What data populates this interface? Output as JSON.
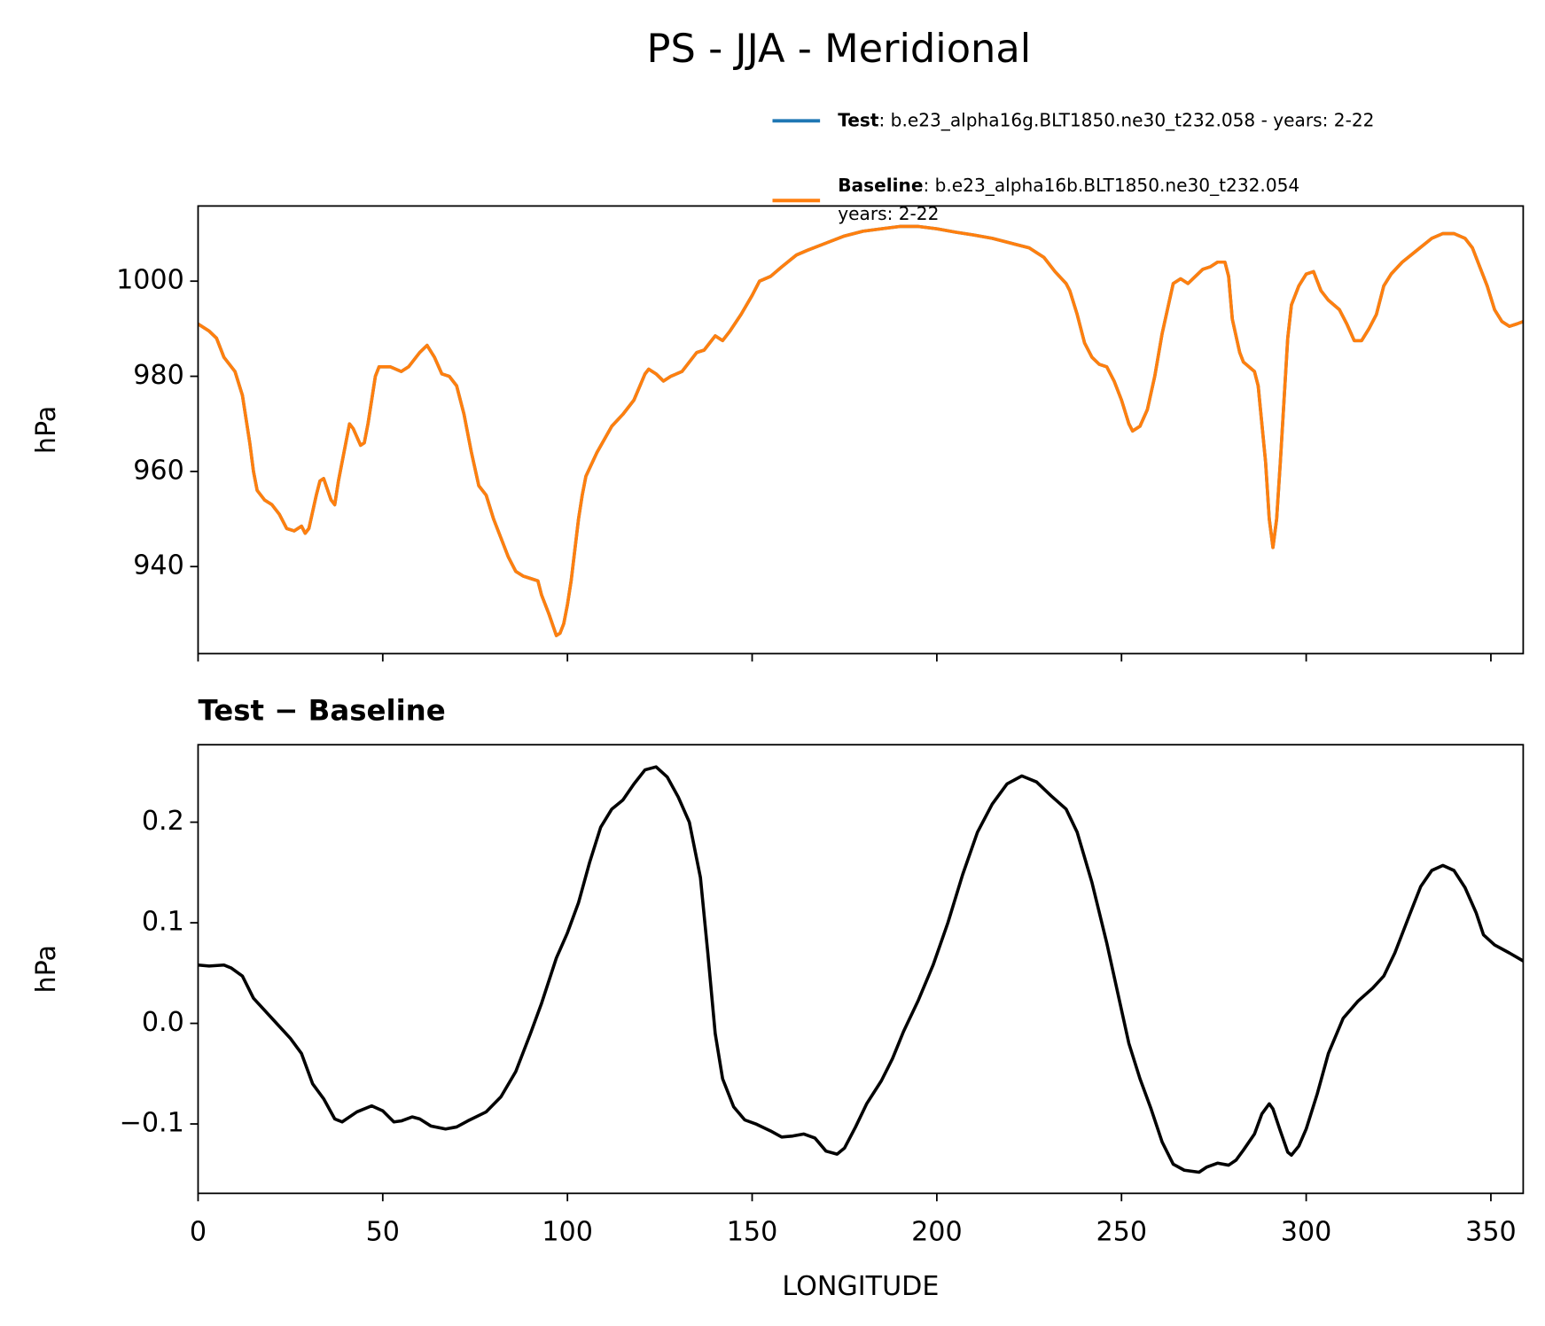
{
  "title": "PS - JJA - Meridional",
  "chart_data": [
    {
      "type": "line",
      "ylabel": "hPa",
      "x": [
        0,
        3,
        5,
        7,
        10,
        12,
        14,
        15,
        16,
        18,
        20,
        22,
        24,
        26,
        28,
        29,
        30,
        32,
        33,
        34,
        36,
        37,
        38,
        40,
        41,
        42,
        44,
        45,
        46,
        48,
        49,
        52,
        55,
        57,
        60,
        62,
        64,
        66,
        68,
        70,
        72,
        74,
        76,
        78,
        80,
        82,
        84,
        86,
        88,
        90,
        92,
        93,
        95,
        97,
        98,
        99,
        100,
        101,
        103,
        104,
        105,
        108,
        112,
        115,
        118,
        121,
        122,
        124,
        126,
        128,
        131,
        133,
        135,
        137,
        140,
        142,
        144,
        147,
        150,
        152,
        155,
        158,
        162,
        165,
        170,
        175,
        180,
        185,
        190,
        195,
        200,
        205,
        210,
        215,
        220,
        225,
        229,
        232,
        235,
        236,
        238,
        240,
        242,
        244,
        246,
        248,
        250,
        252,
        253,
        255,
        257,
        259,
        261,
        263,
        264,
        266,
        268,
        270,
        272,
        274,
        276,
        278,
        279,
        280,
        282,
        283,
        286,
        287,
        288,
        289,
        290,
        291,
        292,
        293,
        294,
        295,
        296,
        298,
        300,
        302,
        304,
        306,
        309,
        311,
        313,
        315,
        317,
        319,
        321,
        323,
        326,
        330,
        334,
        337,
        340,
        343,
        345,
        347,
        349,
        351,
        353,
        355,
        357,
        358.75
      ],
      "series": [
        {
          "name": "Test",
          "legend_lines": [
            ": b.e23_alpha16g.BLT1850.ne30_t232.058 - years: 2-22"
          ],
          "color": "#1f77b4",
          "values": [
            991,
            989.5,
            988,
            984,
            981,
            976,
            966,
            960,
            956,
            954,
            953,
            951,
            948,
            947.5,
            948.5,
            947,
            948,
            955,
            958,
            958.5,
            954,
            953,
            958,
            966,
            970,
            969,
            965.5,
            966,
            970,
            980,
            982,
            982,
            981,
            982,
            985,
            986.5,
            984,
            980.5,
            980,
            978,
            972,
            964,
            957,
            955,
            950,
            946,
            942,
            939,
            938,
            937.5,
            937,
            934,
            930,
            925.5,
            926,
            928,
            932,
            937,
            950,
            955,
            959,
            964,
            969.5,
            972,
            975,
            980.5,
            981.5,
            980.5,
            979,
            980,
            981,
            983,
            985,
            985.5,
            988.5,
            987.5,
            989.5,
            993,
            997,
            1000,
            1001,
            1003,
            1005.5,
            1006.5,
            1008,
            1009.5,
            1010.5,
            1011,
            1011.5,
            1011.5,
            1011,
            1010.3,
            1009.7,
            1009,
            1008,
            1007,
            1005,
            1002,
            999.5,
            998,
            993,
            987,
            984,
            982.5,
            982,
            979,
            975,
            970,
            968.5,
            969.5,
            973,
            980,
            989,
            996,
            999.5,
            1000.5,
            999.5,
            1001,
            1002.5,
            1003,
            1004,
            1004,
            1001,
            992,
            985,
            983,
            981,
            978,
            970,
            962,
            950,
            944,
            950,
            962,
            975,
            988,
            995,
            999,
            1001.5,
            1002,
            998,
            996,
            994,
            991,
            987.5,
            987.5,
            990,
            993,
            999,
            1001.5,
            1004,
            1006.5,
            1009,
            1010,
            1010,
            1009,
            1007,
            1003,
            999,
            994,
            991.5,
            990.5,
            991,
            991.5
          ]
        },
        {
          "name": "Baseline",
          "legend_lines": [
            ": b.e23_alpha16b.BLT1850.ne30_t232.054",
            "years: 2-22"
          ],
          "color": "#ff7f0e",
          "values": [
            991,
            989.5,
            988,
            984,
            981,
            976,
            966,
            960,
            956,
            954,
            953,
            951,
            948,
            947.5,
            948.5,
            947,
            948,
            955,
            958,
            958.5,
            954,
            953,
            958,
            966,
            970,
            969,
            965.5,
            966,
            970,
            980,
            982,
            982,
            981,
            982,
            985,
            986.5,
            984,
            980.5,
            980,
            978,
            972,
            964,
            957,
            955,
            950,
            946,
            942,
            939,
            938,
            937.5,
            937,
            934,
            930,
            925.5,
            926,
            928,
            932,
            937,
            950,
            955,
            959,
            964,
            969.5,
            972,
            975,
            980.5,
            981.5,
            980.5,
            979,
            980,
            981,
            983,
            985,
            985.5,
            988.5,
            987.5,
            989.5,
            993,
            997,
            1000,
            1001,
            1003,
            1005.5,
            1006.5,
            1008,
            1009.5,
            1010.5,
            1011,
            1011.5,
            1011.5,
            1011,
            1010.3,
            1009.7,
            1009,
            1008,
            1007,
            1005,
            1002,
            999.5,
            998,
            993,
            987,
            984,
            982.5,
            982,
            979,
            975,
            970,
            968.5,
            969.5,
            973,
            980,
            989,
            996,
            999.5,
            1000.5,
            999.5,
            1001,
            1002.5,
            1003,
            1004,
            1004,
            1001,
            992,
            985,
            983,
            981,
            978,
            970,
            962,
            950,
            944,
            950,
            962,
            975,
            988,
            995,
            999,
            1001.5,
            1002,
            998,
            996,
            994,
            991,
            987.5,
            987.5,
            990,
            993,
            999,
            1001.5,
            1004,
            1006.5,
            1009,
            1010,
            1010,
            1009,
            1007,
            1003,
            999,
            994,
            991.5,
            990.5,
            991,
            991.5
          ]
        }
      ],
      "xlim": [
        0,
        358.75
      ],
      "xticks": [
        0,
        50,
        100,
        150,
        200,
        250,
        300,
        350
      ],
      "ylim": [
        921.7,
        1015.8
      ],
      "yticks": [
        940,
        960,
        980,
        1000
      ]
    },
    {
      "type": "line",
      "title": "Test − Baseline",
      "ylabel": "hPa",
      "xlabel": "LONGITUDE",
      "x": [
        0,
        3,
        7,
        9,
        12,
        15,
        20,
        25,
        28,
        31,
        34,
        37,
        39,
        43,
        47,
        50,
        53,
        55,
        58,
        60,
        63,
        67,
        70,
        73,
        78,
        82,
        86,
        90,
        93,
        97,
        100,
        103,
        106,
        109,
        112,
        115,
        118,
        121,
        124,
        127,
        130,
        133,
        136,
        138,
        140,
        142,
        145,
        148,
        151,
        155,
        158,
        161,
        164,
        167,
        170,
        173,
        175,
        178,
        181,
        185,
        188,
        191,
        195,
        199,
        203,
        207,
        211,
        215,
        219,
        223,
        227,
        231,
        235,
        238,
        242,
        246,
        249,
        252,
        255,
        258,
        261,
        264,
        267,
        271,
        273,
        276,
        279,
        281,
        283,
        286,
        288,
        290,
        291,
        293,
        295,
        296,
        298,
        300,
        303,
        306,
        310,
        314,
        318,
        321,
        324,
        328,
        331,
        334,
        337,
        340,
        343,
        346,
        348,
        351,
        355,
        358.75
      ],
      "series": [
        {
          "color": "#000000",
          "values": [
            0.058,
            0.057,
            0.058,
            0.055,
            0.047,
            0.025,
            0.005,
            -0.015,
            -0.03,
            -0.06,
            -0.075,
            -0.095,
            -0.098,
            -0.088,
            -0.082,
            -0.087,
            -0.098,
            -0.097,
            -0.093,
            -0.095,
            -0.102,
            -0.105,
            -0.103,
            -0.097,
            -0.088,
            -0.073,
            -0.048,
            -0.01,
            0.02,
            0.065,
            0.09,
            0.12,
            0.16,
            0.195,
            0.213,
            0.222,
            0.238,
            0.252,
            0.255,
            0.245,
            0.225,
            0.2,
            0.145,
            0.07,
            -0.01,
            -0.055,
            -0.083,
            -0.096,
            -0.1,
            -0.107,
            -0.113,
            -0.112,
            -0.11,
            -0.114,
            -0.127,
            -0.13,
            -0.124,
            -0.103,
            -0.08,
            -0.057,
            -0.035,
            -0.008,
            0.023,
            0.058,
            0.1,
            0.148,
            0.19,
            0.218,
            0.238,
            0.246,
            0.24,
            0.226,
            0.213,
            0.19,
            0.14,
            0.08,
            0.03,
            -0.02,
            -0.055,
            -0.085,
            -0.118,
            -0.14,
            -0.146,
            -0.148,
            -0.143,
            -0.139,
            -0.141,
            -0.136,
            -0.126,
            -0.11,
            -0.09,
            -0.08,
            -0.085,
            -0.107,
            -0.128,
            -0.131,
            -0.122,
            -0.105,
            -0.07,
            -0.03,
            0.005,
            0.022,
            0.035,
            0.047,
            0.07,
            0.108,
            0.136,
            0.152,
            0.157,
            0.152,
            0.135,
            0.11,
            0.088,
            0.078,
            0.07,
            0.062
          ]
        }
      ],
      "xlim": [
        0,
        358.75
      ],
      "xticks": [
        0,
        50,
        100,
        150,
        200,
        250,
        300,
        350
      ],
      "ylim": [
        -0.169,
        0.277
      ],
      "yticks": [
        {
          "value": -0.1,
          "label": "−0.1"
        },
        {
          "value": 0,
          "label": "0.0"
        },
        0.1,
        0.2
      ]
    }
  ]
}
